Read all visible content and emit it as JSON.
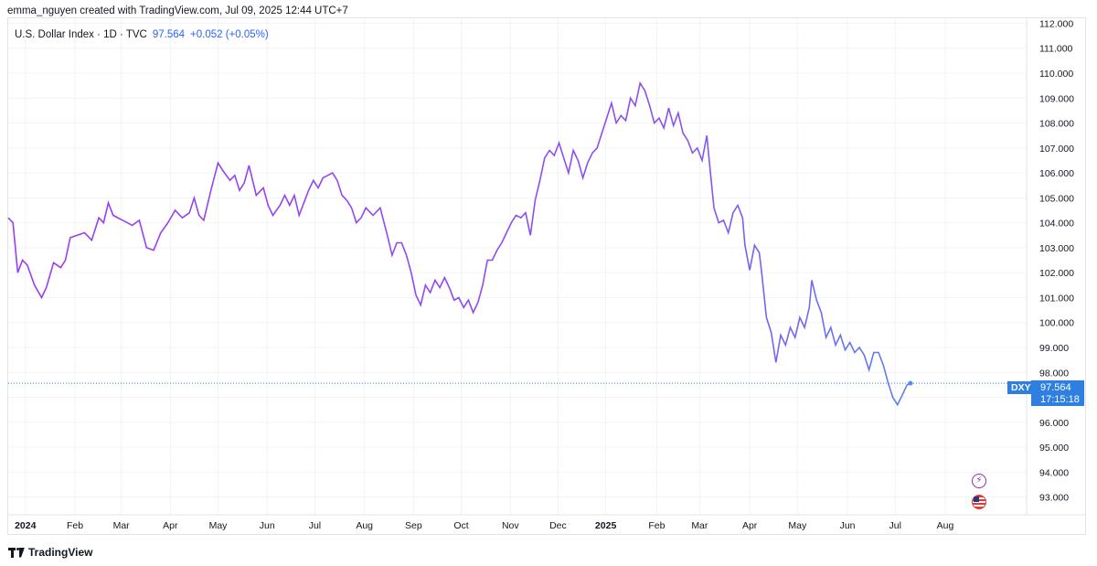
{
  "header": {
    "credit": "emma_nguyen created with TradingView.com, Jul 09, 2025 12:44 UTC+7"
  },
  "legend": {
    "title": "U.S. Dollar Index · 1D · TVC",
    "price": "97.564",
    "change": "+0.052 (+0.05%)"
  },
  "price_tag": {
    "symbol": "DXY",
    "price": "97.564",
    "countdown": "17:15:18"
  },
  "footer": {
    "brand": "TradingView"
  },
  "icons": {
    "bolt": "lightning-bolt-icon",
    "flag": "us-flag-icon"
  },
  "colors": {
    "line_start": "#9c3cf0",
    "line_end": "#4a8ef0",
    "price_tag": "#2f7fe0"
  },
  "chart_data": {
    "type": "line",
    "title": "U.S. Dollar Index · 1D · TVC",
    "ylim": [
      92.4,
      112.2
    ],
    "yticks": [
      93,
      94,
      95,
      96,
      97,
      98,
      99,
      100,
      101,
      102,
      103,
      104,
      105,
      106,
      107,
      108,
      109,
      110,
      111,
      112
    ],
    "ytick_labels": [
      "93.000",
      "94.000",
      "95.000",
      "96.000",
      "97.000",
      "98.000",
      "99.000",
      "100.000",
      "101.000",
      "102.000",
      "103.000",
      "104.000",
      "105.000",
      "106.000",
      "107.000",
      "108.000",
      "109.000",
      "110.000",
      "111.000",
      "112.000"
    ],
    "xticks": [
      {
        "label": "2024",
        "t": 0.16,
        "bold": true
      },
      {
        "label": "Feb",
        "t": 1.2
      },
      {
        "label": "Mar",
        "t": 2.17
      },
      {
        "label": "Apr",
        "t": 3.2
      },
      {
        "label": "May",
        "t": 4.2
      },
      {
        "label": "Jun",
        "t": 5.23
      },
      {
        "label": "Jul",
        "t": 6.23
      },
      {
        "label": "Aug",
        "t": 7.27
      },
      {
        "label": "Sep",
        "t": 8.3
      },
      {
        "label": "Oct",
        "t": 9.3
      },
      {
        "label": "Nov",
        "t": 10.33
      },
      {
        "label": "Dec",
        "t": 11.33
      },
      {
        "label": "2025",
        "t": 12.33,
        "bold": true
      },
      {
        "label": "Feb",
        "t": 13.4
      },
      {
        "label": "Mar",
        "t": 14.3
      },
      {
        "label": "Apr",
        "t": 15.35
      },
      {
        "label": "May",
        "t": 16.35
      },
      {
        "label": "Jun",
        "t": 17.4
      },
      {
        "label": "Jul",
        "t": 18.4
      },
      {
        "label": "Aug",
        "t": 19.45
      }
    ],
    "xlim": [
      -0.2,
      20.6
    ],
    "series": [
      {
        "points": [
          [
            -0.2,
            104.2
          ],
          [
            -0.1,
            104.0
          ],
          [
            0.0,
            102.0
          ],
          [
            0.1,
            102.5
          ],
          [
            0.2,
            102.3
          ],
          [
            0.35,
            101.5
          ],
          [
            0.5,
            101.0
          ],
          [
            0.6,
            101.4
          ],
          [
            0.75,
            102.4
          ],
          [
            0.9,
            102.2
          ],
          [
            1.0,
            102.5
          ],
          [
            1.1,
            103.4
          ],
          [
            1.25,
            103.5
          ],
          [
            1.4,
            103.6
          ],
          [
            1.55,
            103.3
          ],
          [
            1.7,
            104.2
          ],
          [
            1.8,
            104.0
          ],
          [
            1.9,
            104.8
          ],
          [
            2.0,
            104.3
          ],
          [
            2.2,
            104.1
          ],
          [
            2.4,
            103.9
          ],
          [
            2.55,
            104.1
          ],
          [
            2.7,
            103.0
          ],
          [
            2.85,
            102.9
          ],
          [
            3.0,
            103.6
          ],
          [
            3.15,
            104.0
          ],
          [
            3.3,
            104.5
          ],
          [
            3.45,
            104.2
          ],
          [
            3.6,
            104.4
          ],
          [
            3.7,
            105.0
          ],
          [
            3.8,
            104.3
          ],
          [
            3.9,
            104.1
          ],
          [
            4.05,
            105.3
          ],
          [
            4.2,
            106.4
          ],
          [
            4.3,
            106.1
          ],
          [
            4.45,
            105.7
          ],
          [
            4.55,
            105.9
          ],
          [
            4.65,
            105.3
          ],
          [
            4.75,
            105.6
          ],
          [
            4.85,
            106.3
          ],
          [
            5.0,
            105.1
          ],
          [
            5.15,
            105.4
          ],
          [
            5.25,
            104.7
          ],
          [
            5.35,
            104.3
          ],
          [
            5.5,
            104.7
          ],
          [
            5.6,
            105.1
          ],
          [
            5.7,
            104.7
          ],
          [
            5.8,
            105.1
          ],
          [
            5.9,
            104.3
          ],
          [
            6.0,
            104.8
          ],
          [
            6.1,
            105.3
          ],
          [
            6.2,
            105.7
          ],
          [
            6.3,
            105.4
          ],
          [
            6.4,
            105.8
          ],
          [
            6.5,
            105.9
          ],
          [
            6.6,
            106.0
          ],
          [
            6.7,
            105.7
          ],
          [
            6.8,
            105.1
          ],
          [
            6.9,
            104.9
          ],
          [
            7.0,
            104.6
          ],
          [
            7.1,
            104.0
          ],
          [
            7.2,
            104.2
          ],
          [
            7.3,
            104.6
          ],
          [
            7.45,
            104.3
          ],
          [
            7.6,
            104.6
          ],
          [
            7.75,
            103.5
          ],
          [
            7.85,
            102.7
          ],
          [
            7.95,
            103.2
          ],
          [
            8.05,
            103.2
          ],
          [
            8.15,
            102.7
          ],
          [
            8.25,
            102.0
          ],
          [
            8.35,
            101.1
          ],
          [
            8.45,
            100.7
          ],
          [
            8.55,
            101.5
          ],
          [
            8.65,
            101.2
          ],
          [
            8.75,
            101.7
          ],
          [
            8.85,
            101.4
          ],
          [
            8.95,
            101.8
          ],
          [
            9.05,
            101.4
          ],
          [
            9.15,
            100.9
          ],
          [
            9.25,
            101.0
          ],
          [
            9.35,
            100.6
          ],
          [
            9.45,
            100.9
          ],
          [
            9.55,
            100.4
          ],
          [
            9.65,
            100.8
          ],
          [
            9.75,
            101.5
          ],
          [
            9.85,
            102.5
          ],
          [
            9.95,
            102.5
          ],
          [
            10.05,
            102.9
          ],
          [
            10.15,
            103.2
          ],
          [
            10.25,
            103.6
          ],
          [
            10.35,
            104.0
          ],
          [
            10.45,
            104.3
          ],
          [
            10.55,
            104.2
          ],
          [
            10.65,
            104.4
          ],
          [
            10.75,
            103.5
          ],
          [
            10.85,
            104.9
          ],
          [
            10.95,
            105.7
          ],
          [
            11.05,
            106.6
          ],
          [
            11.15,
            106.9
          ],
          [
            11.25,
            106.7
          ],
          [
            11.35,
            107.2
          ],
          [
            11.45,
            106.6
          ],
          [
            11.55,
            106.0
          ],
          [
            11.65,
            106.9
          ],
          [
            11.75,
            106.5
          ],
          [
            11.85,
            105.8
          ],
          [
            11.95,
            106.4
          ],
          [
            12.05,
            106.8
          ],
          [
            12.15,
            107.0
          ],
          [
            12.25,
            107.6
          ],
          [
            12.35,
            108.2
          ],
          [
            12.45,
            108.8
          ],
          [
            12.55,
            108.0
          ],
          [
            12.65,
            108.3
          ],
          [
            12.75,
            108.1
          ],
          [
            12.85,
            109.0
          ],
          [
            12.95,
            108.7
          ],
          [
            13.05,
            109.6
          ],
          [
            13.15,
            109.3
          ],
          [
            13.25,
            108.7
          ],
          [
            13.35,
            108.0
          ],
          [
            13.45,
            108.2
          ],
          [
            13.55,
            107.8
          ],
          [
            13.65,
            108.6
          ],
          [
            13.75,
            107.9
          ],
          [
            13.85,
            108.4
          ],
          [
            13.95,
            107.6
          ],
          [
            14.05,
            107.3
          ],
          [
            14.15,
            106.8
          ],
          [
            14.25,
            107.0
          ],
          [
            14.35,
            106.5
          ],
          [
            14.45,
            107.5
          ],
          [
            14.5,
            106.5
          ],
          [
            14.6,
            104.6
          ],
          [
            14.7,
            104.0
          ],
          [
            14.8,
            104.1
          ],
          [
            14.9,
            103.6
          ],
          [
            15.0,
            104.4
          ],
          [
            15.1,
            104.7
          ],
          [
            15.2,
            104.2
          ],
          [
            15.25,
            103.1
          ],
          [
            15.35,
            102.1
          ],
          [
            15.45,
            103.1
          ],
          [
            15.55,
            102.8
          ],
          [
            15.6,
            102.0
          ],
          [
            15.7,
            100.2
          ],
          [
            15.8,
            99.6
          ],
          [
            15.9,
            98.4
          ],
          [
            16.0,
            99.5
          ],
          [
            16.1,
            99.1
          ],
          [
            16.2,
            99.8
          ],
          [
            16.3,
            99.4
          ],
          [
            16.4,
            100.2
          ],
          [
            16.5,
            99.8
          ],
          [
            16.6,
            100.6
          ],
          [
            16.65,
            101.7
          ],
          [
            16.75,
            100.9
          ],
          [
            16.85,
            100.4
          ],
          [
            16.95,
            99.4
          ],
          [
            17.05,
            99.8
          ],
          [
            17.15,
            99.1
          ],
          [
            17.25,
            99.5
          ],
          [
            17.35,
            98.9
          ],
          [
            17.45,
            99.2
          ],
          [
            17.55,
            98.8
          ],
          [
            17.65,
            99.0
          ],
          [
            17.75,
            98.7
          ],
          [
            17.85,
            98.1
          ],
          [
            17.95,
            98.8
          ],
          [
            18.05,
            98.8
          ],
          [
            18.15,
            98.3
          ],
          [
            18.25,
            97.6
          ],
          [
            18.35,
            97.0
          ],
          [
            18.45,
            96.7
          ],
          [
            18.55,
            97.1
          ],
          [
            18.65,
            97.5
          ],
          [
            18.72,
            97.56
          ]
        ]
      }
    ],
    "last_value": 97.564
  }
}
